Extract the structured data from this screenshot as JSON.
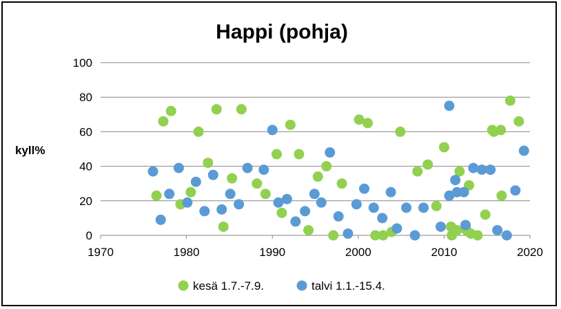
{
  "colors": {
    "summer": "#92D050",
    "winter": "#5B9BD5",
    "grid": "#868686",
    "axis": "#868686"
  },
  "chart_data": {
    "type": "scatter",
    "title": "Happi (pohja)",
    "ylabel": "kyll%",
    "xlabel": "",
    "xlim": [
      1970,
      2020
    ],
    "ylim": [
      0,
      100
    ],
    "xticks": [
      "1970",
      "1980",
      "1990",
      "2000",
      "2010",
      "2020"
    ],
    "yticks": [
      "0",
      "20",
      "40",
      "60",
      "80",
      "100"
    ],
    "grid": "horizontal",
    "legend_position": "bottom",
    "series": [
      {
        "name": "kesä 1.7.-7.9.",
        "color": "#92D050",
        "points": [
          [
            1976.5,
            23
          ],
          [
            1977.3,
            66
          ],
          [
            1978.2,
            72
          ],
          [
            1979.3,
            18
          ],
          [
            1980.5,
            25
          ],
          [
            1981.4,
            60
          ],
          [
            1982.5,
            42
          ],
          [
            1983.5,
            73
          ],
          [
            1984.3,
            5
          ],
          [
            1985.3,
            33
          ],
          [
            1986.4,
            73
          ],
          [
            1988.2,
            30
          ],
          [
            1989.2,
            24
          ],
          [
            1990.5,
            47
          ],
          [
            1991.1,
            13
          ],
          [
            1992.1,
            64
          ],
          [
            1993.1,
            47
          ],
          [
            1994.2,
            3
          ],
          [
            1995.3,
            34
          ],
          [
            1996.3,
            40
          ],
          [
            1997.1,
            0
          ],
          [
            1998.1,
            30
          ],
          [
            2000.1,
            67
          ],
          [
            2001.1,
            65
          ],
          [
            2002,
            0
          ],
          [
            2002.9,
            0
          ],
          [
            2003.9,
            2
          ],
          [
            2004.9,
            60
          ],
          [
            2006.9,
            37
          ],
          [
            2008.1,
            41
          ],
          [
            2009.1,
            17
          ],
          [
            2010,
            51
          ],
          [
            2010.8,
            5
          ],
          [
            2010.9,
            0
          ],
          [
            2011.5,
            3
          ],
          [
            2011.8,
            37
          ],
          [
            2012.6,
            3
          ],
          [
            2012.9,
            29
          ],
          [
            2013.1,
            1
          ],
          [
            2013.9,
            0
          ],
          [
            2014.8,
            12
          ],
          [
            2015.6,
            61
          ],
          [
            2015.8,
            60
          ],
          [
            2016.6,
            61
          ],
          [
            2016.7,
            23
          ],
          [
            2017.7,
            78
          ],
          [
            2018.7,
            66
          ]
        ]
      },
      {
        "name": "talvi 1.1.-15.4.",
        "color": "#5B9BD5",
        "points": [
          [
            1976.1,
            37
          ],
          [
            1977,
            9
          ],
          [
            1978,
            24
          ],
          [
            1979.1,
            39
          ],
          [
            1980.1,
            19
          ],
          [
            1981.1,
            31
          ],
          [
            1982.1,
            14
          ],
          [
            1983.1,
            35
          ],
          [
            1984.1,
            15
          ],
          [
            1985.1,
            24
          ],
          [
            1986.1,
            18
          ],
          [
            1987.1,
            39
          ],
          [
            1989,
            38
          ],
          [
            1990,
            61
          ],
          [
            1990.7,
            19
          ],
          [
            1991.7,
            21
          ],
          [
            1992.7,
            8
          ],
          [
            1993.8,
            14
          ],
          [
            1994.9,
            24
          ],
          [
            1995.7,
            19
          ],
          [
            1996.7,
            48
          ],
          [
            1997.7,
            11
          ],
          [
            1998.8,
            1
          ],
          [
            1999.8,
            18
          ],
          [
            2000.7,
            27
          ],
          [
            2001.8,
            16
          ],
          [
            2002.8,
            10
          ],
          [
            2003.8,
            25
          ],
          [
            2004.5,
            4
          ],
          [
            2005.6,
            16
          ],
          [
            2006.6,
            0
          ],
          [
            2007.6,
            16
          ],
          [
            2009.6,
            5
          ],
          [
            2010.6,
            75
          ],
          [
            2010.6,
            23
          ],
          [
            2011.3,
            32
          ],
          [
            2011.5,
            25
          ],
          [
            2012.3,
            25
          ],
          [
            2012.5,
            6
          ],
          [
            2013.4,
            39
          ],
          [
            2014.4,
            38
          ],
          [
            2015.4,
            38
          ],
          [
            2016.2,
            3
          ],
          [
            2017.3,
            0
          ],
          [
            2018.3,
            26
          ],
          [
            2019.3,
            49
          ]
        ]
      }
    ]
  }
}
